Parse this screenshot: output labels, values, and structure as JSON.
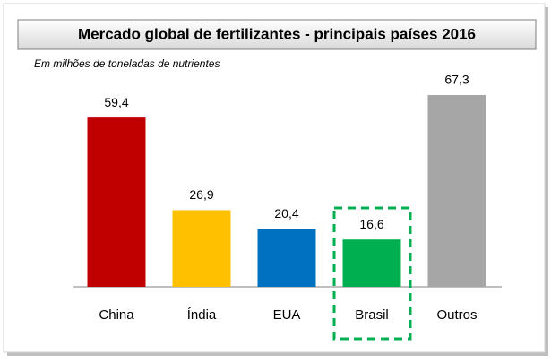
{
  "chart_data": {
    "type": "bar",
    "title": "Mercado global de fertilizantes - principais países 2016",
    "subtitle": "Em milhões de toneladas de nutrientes",
    "categories": [
      "China",
      "Índia",
      "EUA",
      "Brasil",
      "Outros"
    ],
    "values": [
      59.4,
      26.9,
      20.4,
      16.6,
      67.3
    ],
    "value_labels": [
      "59,4",
      "26,9",
      "20,4",
      "16,6",
      "67,3"
    ],
    "colors": [
      "#c00000",
      "#ffc000",
      "#0070c0",
      "#00b050",
      "#a6a6a6"
    ]
  }
}
